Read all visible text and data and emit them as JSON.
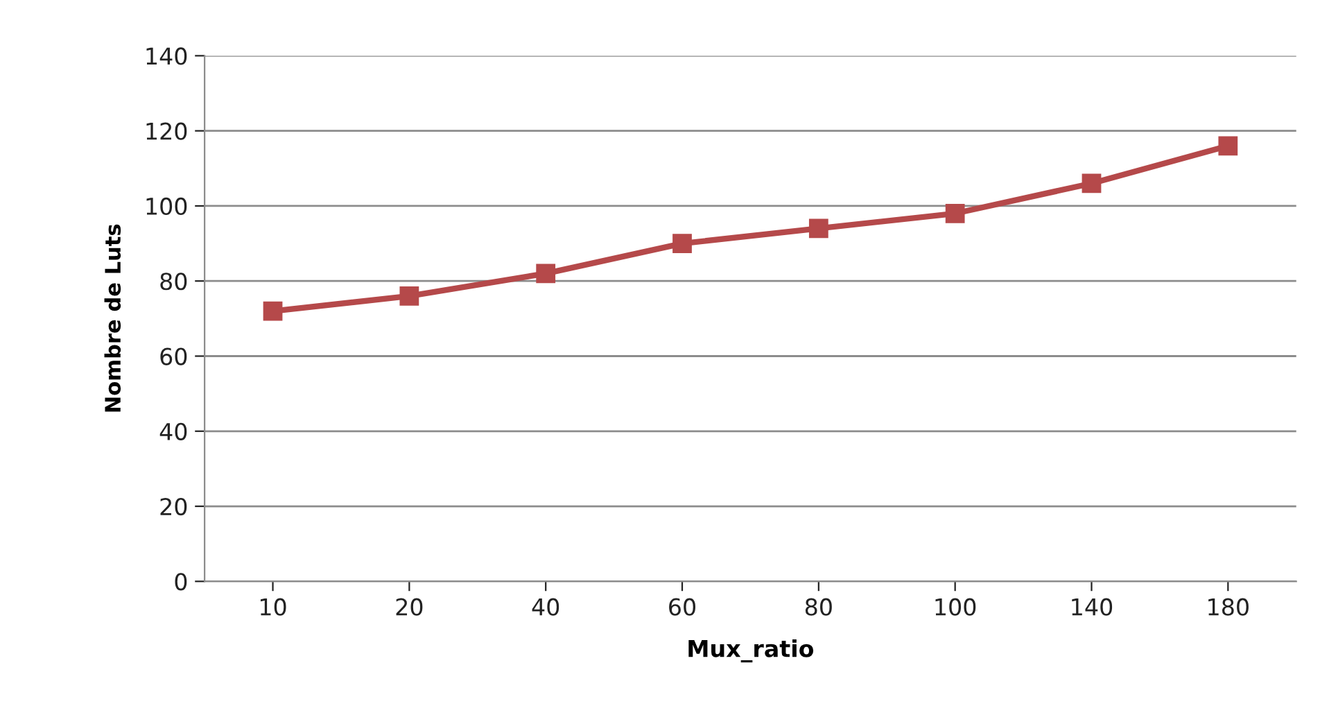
{
  "chart_data": {
    "type": "line",
    "xlabel": "Mux_ratio",
    "ylabel": "Nombre de Luts",
    "categories": [
      "10",
      "20",
      "40",
      "60",
      "80",
      "100",
      "140",
      "180"
    ],
    "series": [
      {
        "color": "#b5494a",
        "values": [
          72,
          76,
          82,
          90,
          94,
          98,
          106,
          116
        ]
      }
    ],
    "ylim": [
      0,
      140
    ],
    "yticks": [
      0,
      20,
      40,
      60,
      80,
      100,
      120,
      140
    ],
    "grid": "y",
    "marker": "square",
    "line_style": "solid"
  }
}
